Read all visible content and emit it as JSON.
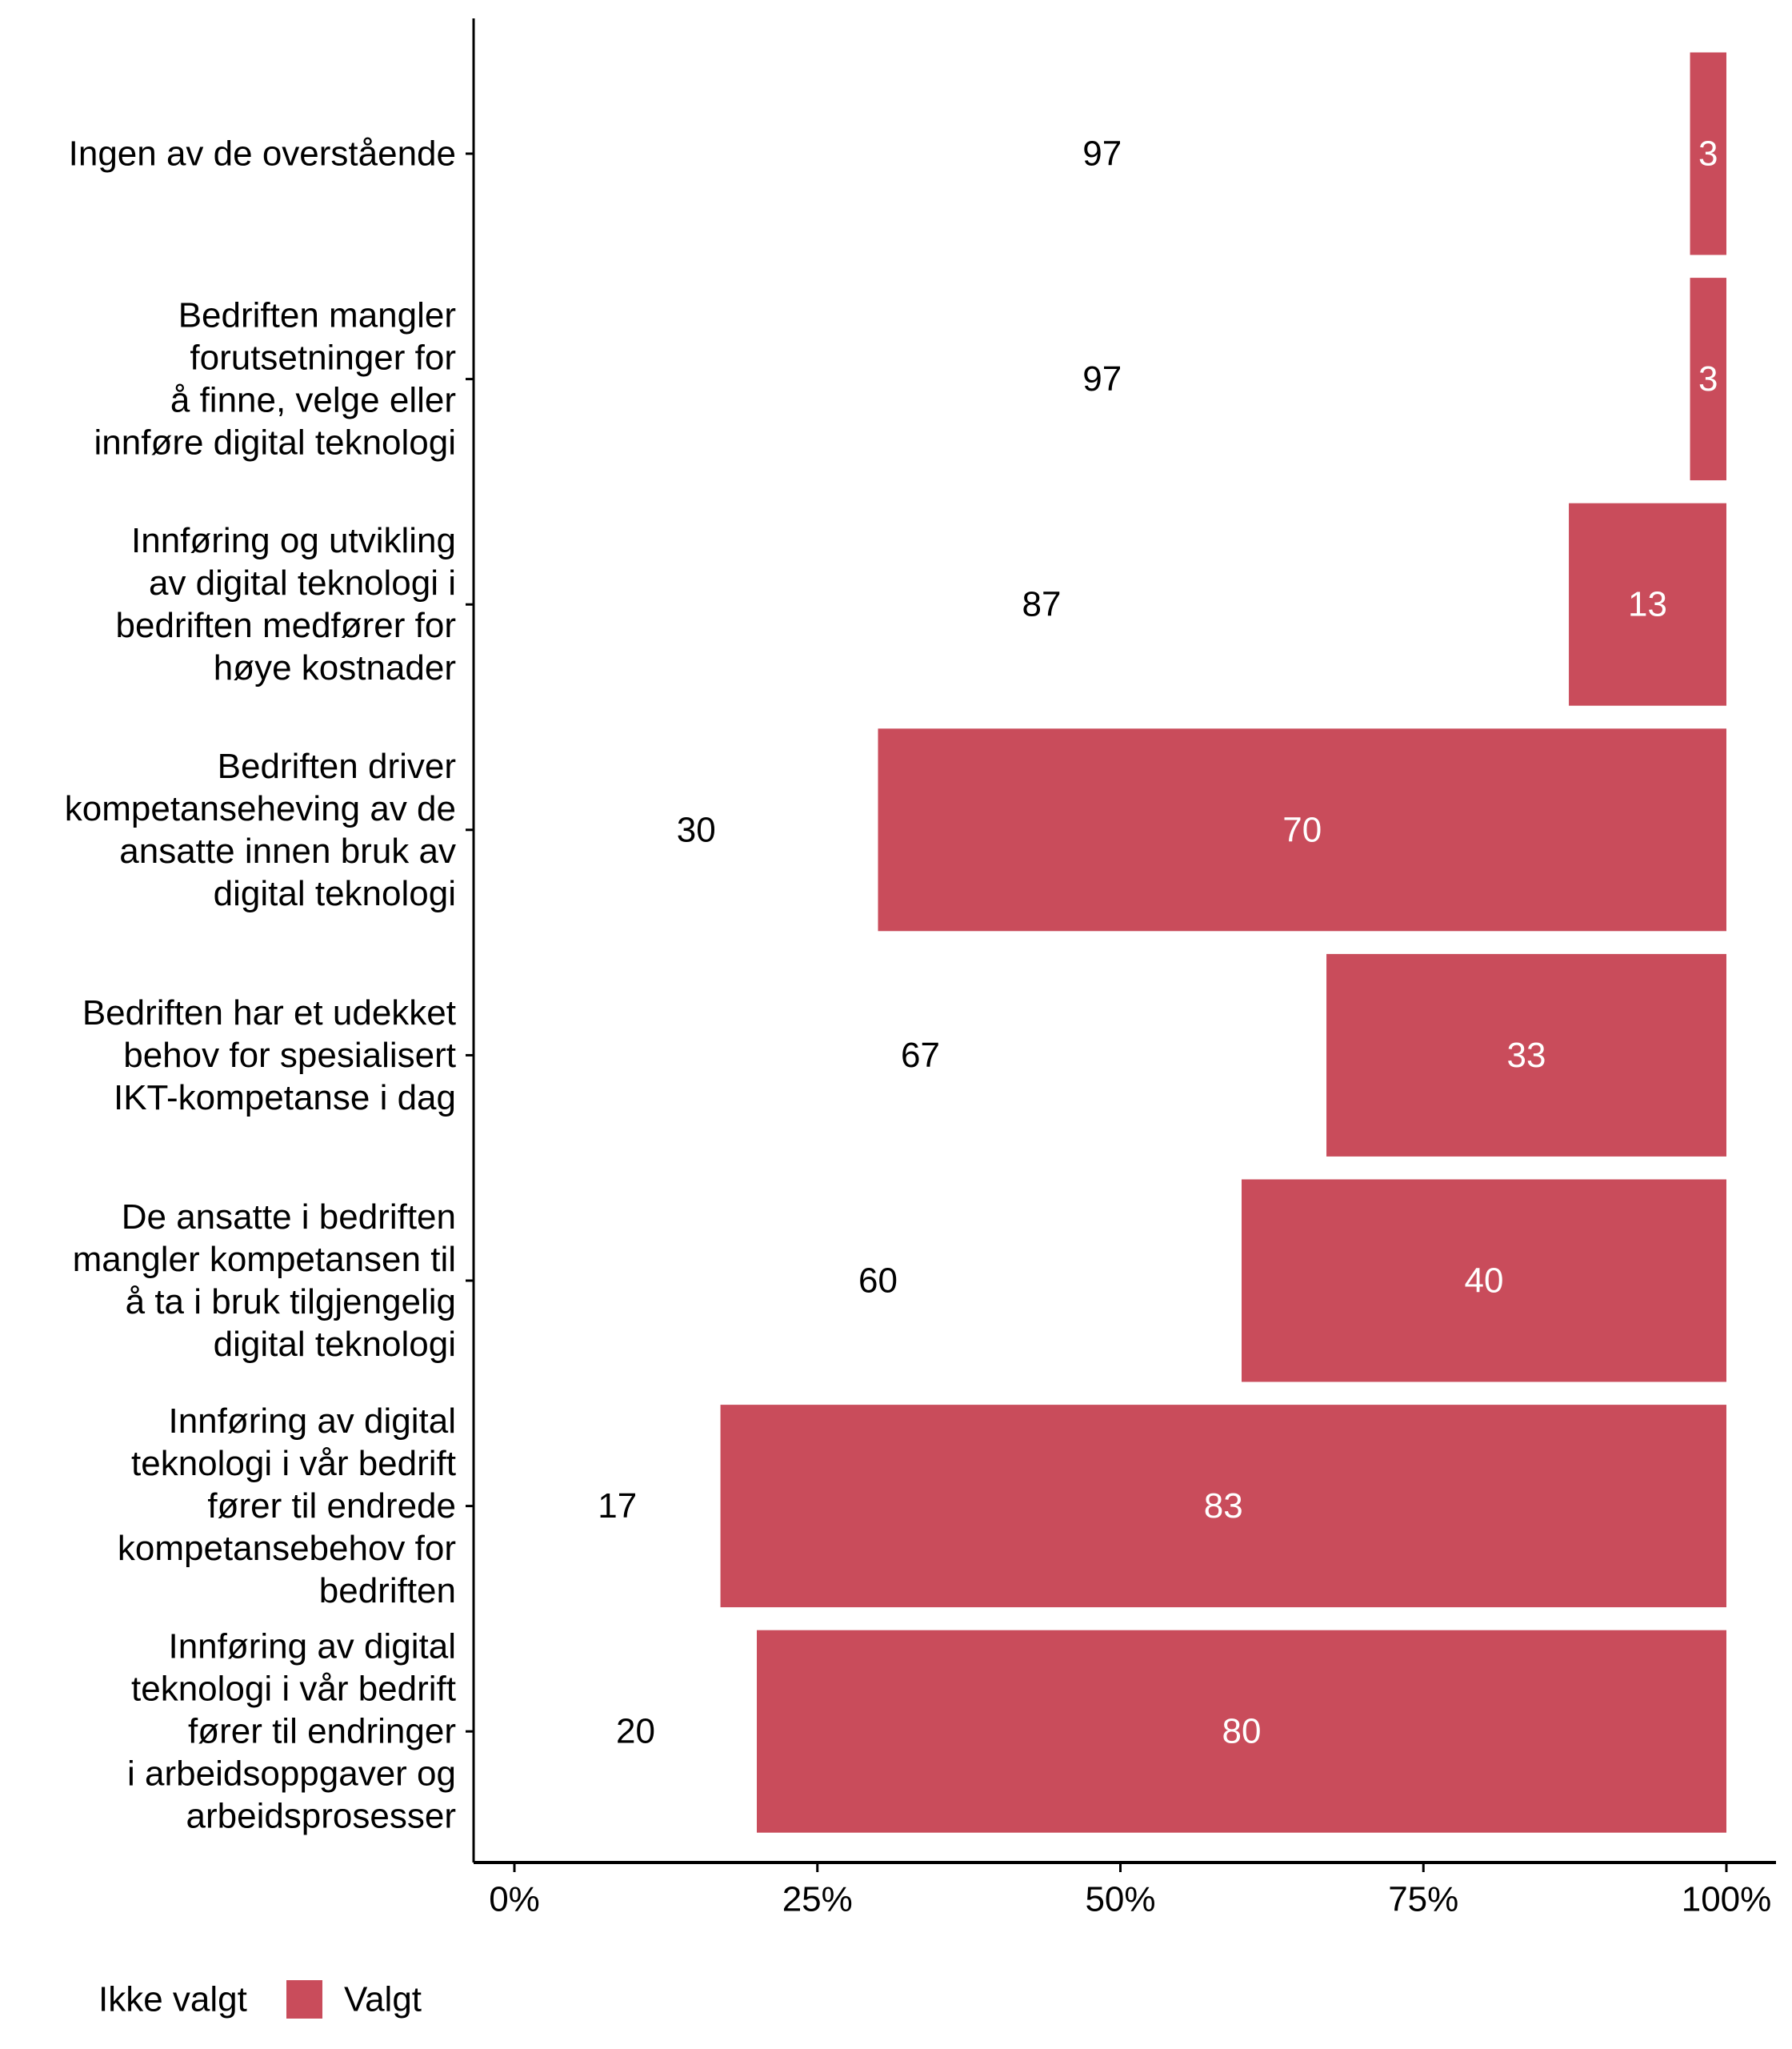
{
  "chart_data": {
    "type": "bar",
    "orientation": "horizontal",
    "stacked": "percent",
    "title": "",
    "xlabel": "",
    "ylabel": "",
    "xlim": [
      0,
      100
    ],
    "x_ticks": [
      "0%",
      "25%",
      "50%",
      "75%",
      "100%"
    ],
    "x_tick_values": [
      0,
      25,
      50,
      75,
      100
    ],
    "grid": false,
    "legend_position": "bottom-left",
    "categories": [
      [
        "Ingen av de overstående"
      ],
      [
        "Bedriften mangler",
        "forutsetninger for",
        "å finne, velge eller",
        "innføre digital teknologi"
      ],
      [
        "Innføring og utvikling",
        "av digital teknologi i",
        "bedriften medfører for",
        "høye kostnader"
      ],
      [
        "Bedriften driver",
        "kompetanseheving av de",
        "ansatte innen bruk av",
        "digital teknologi"
      ],
      [
        "Bedriften har et udekket",
        "behov for spesialisert",
        "IKT-kompetanse i dag"
      ],
      [
        "De ansatte i bedriften",
        "mangler kompetansen til",
        "å ta i bruk tilgjengelig",
        "digital teknologi"
      ],
      [
        "Innføring av digital",
        "teknologi i vår bedrift",
        "fører til endrede",
        "kompetansebehov for",
        "bedriften"
      ],
      [
        "Innføring av digital",
        "teknologi i vår bedrift",
        "fører til endringer",
        "i arbeidsoppgaver og",
        "arbeidsprosesser"
      ]
    ],
    "series": [
      {
        "name": "Ikke valgt",
        "color": "#ffffff",
        "values": [
          97,
          97,
          87,
          30,
          67,
          60,
          17,
          20
        ]
      },
      {
        "name": "Valgt",
        "color": "#c94c5b",
        "values": [
          3,
          3,
          13,
          70,
          33,
          40,
          83,
          80
        ]
      }
    ]
  }
}
